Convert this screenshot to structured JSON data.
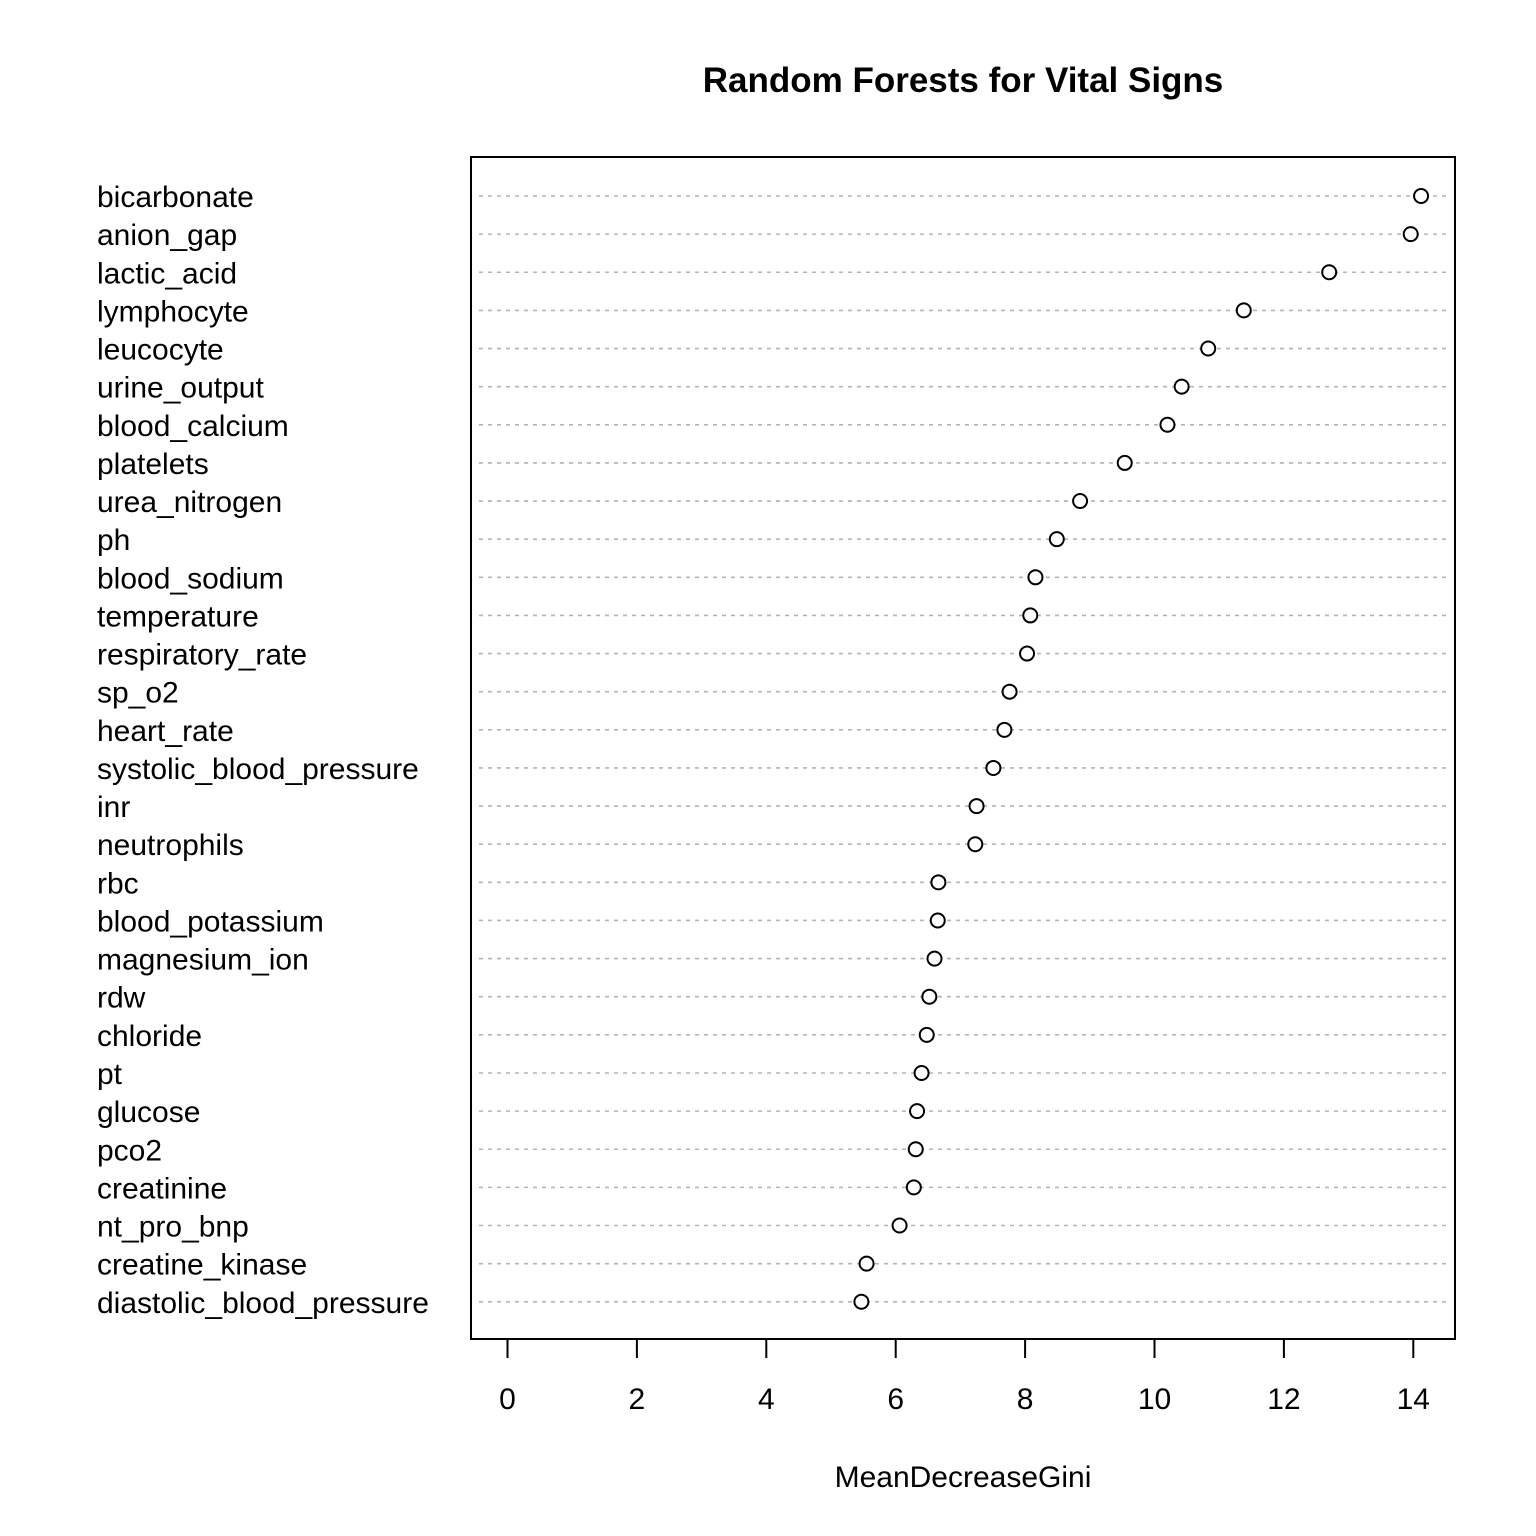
{
  "chart_data": {
    "type": "scatter",
    "subtype": "dotchart",
    "title": "Random Forests for Vital Signs",
    "xlabel": "MeanDecreaseGini",
    "ylabel": "",
    "xlim": [
      0,
      14
    ],
    "xticks": [
      "0",
      "2",
      "4",
      "6",
      "8",
      "10",
      "12",
      "14"
    ],
    "grid": "dotted horizontal guide lines",
    "categories": [
      "bicarbonate",
      "anion_gap",
      "lactic_acid",
      "lymphocyte",
      "leucocyte",
      "urine_output",
      "blood_calcium",
      "platelets",
      "urea_nitrogen",
      "ph",
      "blood_sodium",
      "temperature",
      "respiratory_rate",
      "sp_o2",
      "heart_rate",
      "systolic_blood_pressure",
      "inr",
      "neutrophils",
      "rbc",
      "blood_potassium",
      "magnesium_ion",
      "rdw",
      "chloride",
      "pt",
      "glucose",
      "pco2",
      "creatinine",
      "nt_pro_bnp",
      "creatine_kinase",
      "diastolic_blood_pressure"
    ],
    "values": [
      14.12,
      13.96,
      12.7,
      11.38,
      10.83,
      10.42,
      10.2,
      9.54,
      8.85,
      8.49,
      8.16,
      8.08,
      8.03,
      7.76,
      7.68,
      7.51,
      7.25,
      7.23,
      6.66,
      6.65,
      6.6,
      6.52,
      6.48,
      6.4,
      6.33,
      6.31,
      6.28,
      6.06,
      5.55,
      5.47
    ]
  }
}
